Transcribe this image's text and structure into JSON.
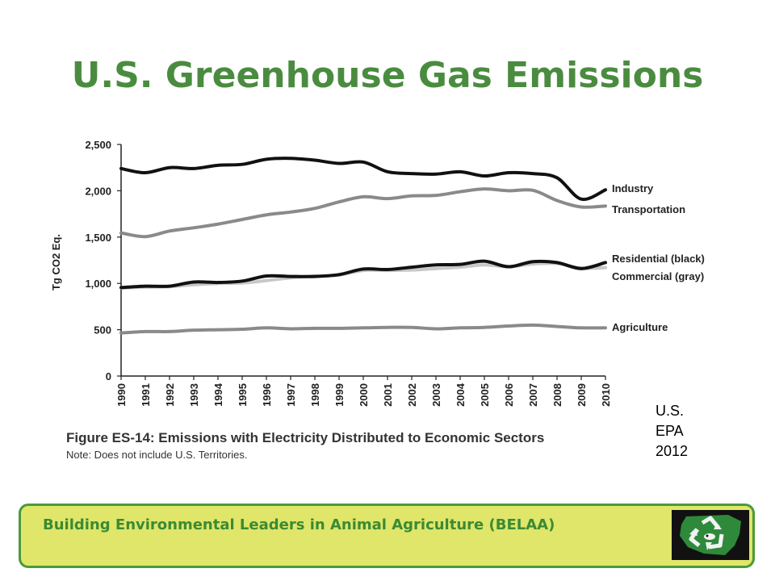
{
  "slide": {
    "title": "U.S. Greenhouse Gas Emissions",
    "source_lines": [
      "U.S.",
      "EPA",
      "2012"
    ],
    "footer_text": "Building Environmental Leaders in Animal Agriculture (BELAA)"
  },
  "figure": {
    "caption": "Figure ES-14:  Emissions with Electricity Distributed to Economic Sectors",
    "note": "Note: Does not include U.S. Territories."
  },
  "colors": {
    "title_green": "#4a8c3f",
    "footer_fill": "#dfe66a",
    "footer_border": "#4a9a3a",
    "series_black": "#111111",
    "series_gray": "#8a8a8a",
    "series_light_gray": "#c8c8c8"
  },
  "chart_data": {
    "type": "line",
    "ylabel": "Tg CO2 Eq.",
    "ylim": [
      0,
      2500
    ],
    "yticks": [
      0,
      500,
      1000,
      1500,
      2000,
      2500
    ],
    "ytick_labels": [
      "0",
      "500",
      "1,000",
      "1,500",
      "2,000",
      "2,500"
    ],
    "x": [
      1990,
      1991,
      1992,
      1993,
      1994,
      1995,
      1996,
      1997,
      1998,
      1999,
      2000,
      2001,
      2002,
      2003,
      2004,
      2005,
      2006,
      2007,
      2008,
      2009,
      2010
    ],
    "grid": false,
    "legend": "inline-right",
    "series": [
      {
        "name": "Industry",
        "color": "#111111",
        "values": [
          2240,
          2195,
          2250,
          2240,
          2275,
          2285,
          2340,
          2350,
          2330,
          2295,
          2310,
          2205,
          2185,
          2180,
          2205,
          2160,
          2195,
          2185,
          2140,
          1910,
          2010
        ]
      },
      {
        "name": "Transportation",
        "color": "#8a8a8a",
        "values": [
          1545,
          1505,
          1565,
          1600,
          1640,
          1690,
          1740,
          1770,
          1810,
          1880,
          1935,
          1915,
          1945,
          1950,
          1990,
          2020,
          2000,
          2005,
          1895,
          1825,
          1835
        ]
      },
      {
        "name": "Residential (black)",
        "color": "#111111",
        "values": [
          955,
          970,
          970,
          1015,
          1010,
          1025,
          1080,
          1075,
          1075,
          1095,
          1155,
          1150,
          1175,
          1200,
          1205,
          1240,
          1180,
          1235,
          1225,
          1160,
          1225
        ]
      },
      {
        "name": "Commercial (gray)",
        "color": "#c8c8c8",
        "values": [
          950,
          960,
          965,
          985,
          1000,
          1005,
          1030,
          1060,
          1080,
          1090,
          1140,
          1140,
          1145,
          1160,
          1175,
          1200,
          1180,
          1210,
          1215,
          1165,
          1170
        ]
      },
      {
        "name": "Agriculture",
        "color": "#8a8a8a",
        "values": [
          465,
          480,
          480,
          495,
          500,
          505,
          520,
          510,
          515,
          515,
          520,
          525,
          525,
          510,
          520,
          525,
          540,
          550,
          535,
          520,
          520
        ]
      }
    ]
  }
}
